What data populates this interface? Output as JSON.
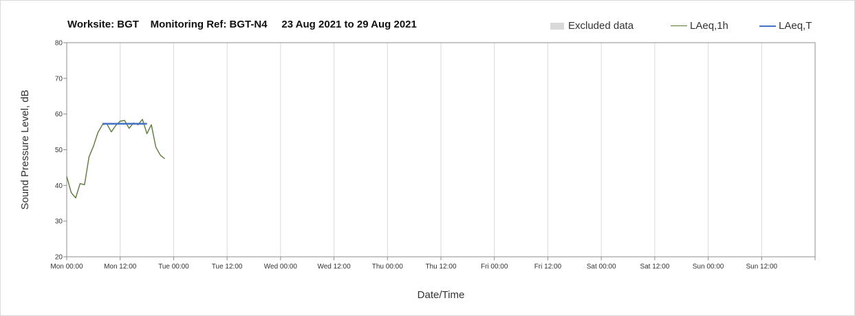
{
  "chart_data": {
    "type": "line",
    "title": "Worksite: BGT    Monitoring Ref: BGT-N4     23 Aug 2021 to 29 Aug 2021",
    "xlabel": "Date/Time",
    "ylabel": "Sound Pressure Level, dB",
    "ylim": [
      20,
      80
    ],
    "yticks": [
      "20",
      "30",
      "40",
      "50",
      "60",
      "70",
      "80"
    ],
    "xlim_hours": [
      0,
      168
    ],
    "xtick_labels": [
      "Mon 00:00",
      "Mon 12:00",
      "Tue 00:00",
      "Tue 12:00",
      "Wed 00:00",
      "Wed 12:00",
      "Thu 00:00",
      "Thu 12:00",
      "Fri 00:00",
      "Fri 12:00",
      "Sat 00:00",
      "Sat 12:00",
      "Sun 00:00",
      "Sun 12:00"
    ],
    "grid": "vertical",
    "legend_position": "top-right",
    "legend": [
      "Excluded data",
      "LAeq,1h",
      "LAeq,T"
    ],
    "series": [
      {
        "name": "LAeq,1h",
        "color": "#5a7a3a",
        "x_hours": [
          0,
          1,
          2,
          3,
          4,
          5,
          6,
          7,
          8,
          9,
          10,
          11,
          12,
          13,
          14,
          15,
          16,
          17,
          18,
          19,
          20,
          21,
          22
        ],
        "values": [
          42.5,
          38.0,
          36.5,
          40.5,
          40.2,
          48.0,
          51.0,
          54.8,
          57.0,
          57.3,
          55.0,
          56.8,
          58.0,
          58.2,
          56.0,
          57.5,
          57.0,
          58.5,
          54.5,
          57.0,
          50.8,
          48.5,
          47.5
        ]
      },
      {
        "name": "LAeq,T",
        "color": "#4472c4",
        "x_hours": [
          8,
          18
        ],
        "values": [
          57.3,
          57.3
        ]
      }
    ],
    "excluded_color": "#d9d9d9"
  }
}
